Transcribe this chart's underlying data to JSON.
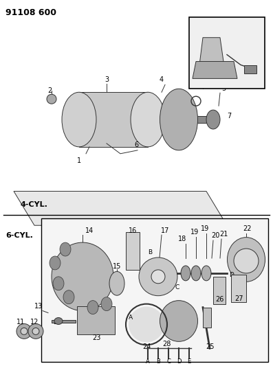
{
  "title": "91108 600",
  "background_color": "#ffffff",
  "border_color": "#000000",
  "label_4cyl": "4-CYL.",
  "label_6cyl": "6-CYL.",
  "fig_width": 3.97,
  "fig_height": 5.33,
  "dpi": 100,
  "top_header": "91108 600",
  "line_color": "#333333",
  "gray_light": "#cccccc",
  "gray_medium": "#999999",
  "gray_dark": "#666666"
}
